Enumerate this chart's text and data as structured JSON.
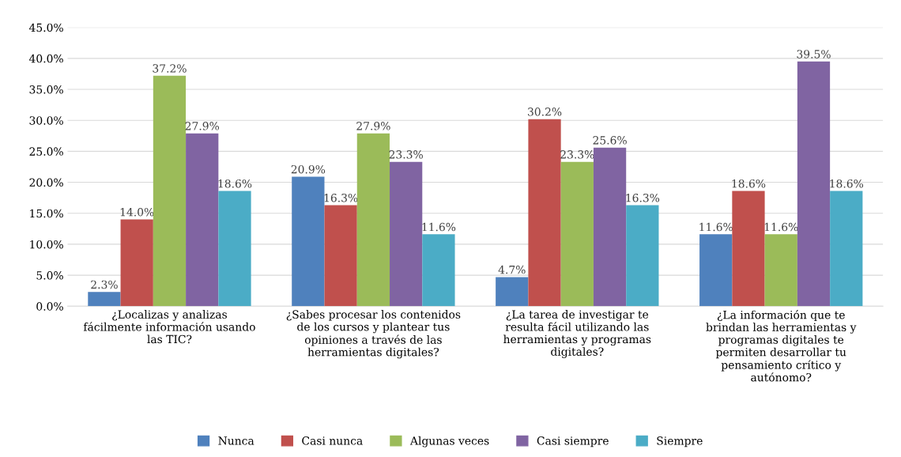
{
  "chart_data": {
    "type": "bar",
    "categories": [
      "¿Localizas y analizas\nfácilmente información usando\nlas TIC?",
      "¿Sabes procesar los contenidos\nde los cursos y plantear tus\nopiniones a través de las\nherramientas digitales?",
      "¿La tarea de investigar te\nresulta fácil utilizando las\nherramientas y programas\ndigitales?",
      "¿La información que te\nbrindan las herramientas y\nprogramas digitales te\npermiten desarrollar tu\npensamiento crítico y\nautónomo?"
    ],
    "series": [
      {
        "name": "Nunca",
        "color": "#4f81bd",
        "values": [
          2.3,
          20.9,
          4.7,
          11.6
        ],
        "value_labels": [
          "2.3%",
          "20.9%",
          "4.7%",
          "11.6%"
        ]
      },
      {
        "name": "Casi nunca",
        "color": "#c0504d",
        "values": [
          14.0,
          16.3,
          30.2,
          18.6
        ],
        "value_labels": [
          "14.0%",
          "16.3%",
          "30.2%",
          "18.6%"
        ]
      },
      {
        "name": "Algunas veces",
        "color": "#9bbb59",
        "values": [
          37.2,
          27.9,
          23.3,
          11.6
        ],
        "value_labels": [
          "37.2%",
          "27.9%",
          "23.3%",
          "11.6%"
        ]
      },
      {
        "name": "Casi siempre",
        "color": "#8064a2",
        "values": [
          27.9,
          23.3,
          25.6,
          39.5
        ],
        "value_labels": [
          "27.9%",
          "23.3%",
          "25.6%",
          "39.5%"
        ]
      },
      {
        "name": "Siempre",
        "color": "#4bacc6",
        "values": [
          18.6,
          11.6,
          16.3,
          18.6
        ],
        "value_labels": [
          "18.6%",
          "11.6%",
          "16.3%",
          "18.6%"
        ]
      }
    ],
    "ylim": [
      0,
      45
    ],
    "yticks": [
      {
        "value": 0,
        "label": "0.0%"
      },
      {
        "value": 5,
        "label": "5.0%"
      },
      {
        "value": 10,
        "label": "10.0%"
      },
      {
        "value": 15,
        "label": "15.0%"
      },
      {
        "value": 20,
        "label": "20.0%"
      },
      {
        "value": 25,
        "label": "25.0%"
      },
      {
        "value": 30,
        "label": "30.0%"
      },
      {
        "value": 35,
        "label": "35.0%"
      },
      {
        "value": 40,
        "label": "40.0%"
      },
      {
        "value": 45,
        "label": "45.0%"
      }
    ],
    "grid": "y",
    "legend": "bottom"
  }
}
